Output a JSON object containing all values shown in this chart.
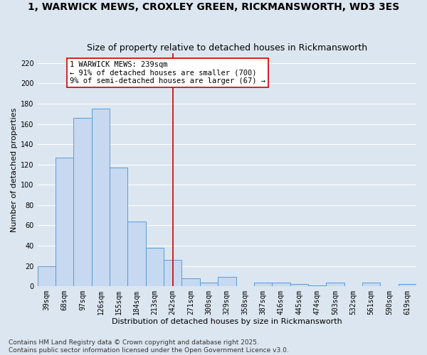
{
  "title": "1, WARWICK MEWS, CROXLEY GREEN, RICKMANSWORTH, WD3 3ES",
  "subtitle": "Size of property relative to detached houses in Rickmansworth",
  "xlabel": "Distribution of detached houses by size in Rickmansworth",
  "ylabel": "Number of detached properties",
  "categories": [
    "39sqm",
    "68sqm",
    "97sqm",
    "126sqm",
    "155sqm",
    "184sqm",
    "213sqm",
    "242sqm",
    "271sqm",
    "300sqm",
    "329sqm",
    "358sqm",
    "387sqm",
    "416sqm",
    "445sqm",
    "474sqm",
    "503sqm",
    "532sqm",
    "561sqm",
    "590sqm",
    "619sqm"
  ],
  "values": [
    20,
    127,
    166,
    175,
    117,
    64,
    38,
    26,
    8,
    4,
    9,
    0,
    4,
    4,
    2,
    1,
    4,
    0,
    4,
    0,
    2
  ],
  "bar_color": "#c6d9f1",
  "bar_edge_color": "#5b9bd5",
  "background_color": "#dce6f1",
  "grid_color": "#ffffff",
  "annotation_text": "1 WARWICK MEWS: 239sqm\n← 91% of detached houses are smaller (700)\n9% of semi-detached houses are larger (67) →",
  "annotation_box_color": "#ffffff",
  "annotation_box_edge_color": "#cc0000",
  "vline_x_index": 7,
  "vline_color": "#cc0000",
  "ylim": [
    0,
    230
  ],
  "yticks": [
    0,
    20,
    40,
    60,
    80,
    100,
    120,
    140,
    160,
    180,
    200,
    220
  ],
  "footer_line1": "Contains HM Land Registry data © Crown copyright and database right 2025.",
  "footer_line2": "Contains public sector information licensed under the Open Government Licence v3.0.",
  "title_fontsize": 10,
  "subtitle_fontsize": 9,
  "axis_label_fontsize": 8,
  "tick_fontsize": 7,
  "annotation_fontsize": 7.5,
  "footer_fontsize": 6.5
}
